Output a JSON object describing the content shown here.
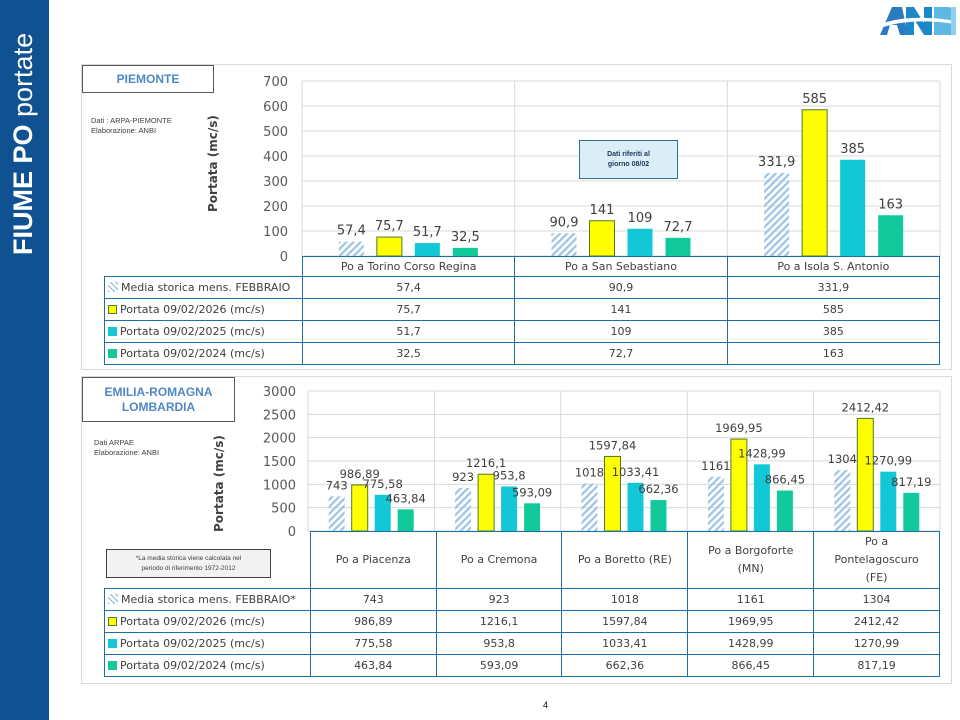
{
  "sidebar": {
    "title_bold": "FIUME PO",
    "title_light": "portate"
  },
  "logo": {
    "text": "ANBI",
    "icon": "anbi-logo-icon"
  },
  "page_number": "4",
  "colors": {
    "sidebar": "#0f5191",
    "media": "#9dc3e6",
    "y2026": "#ffff00",
    "y2025": "#12c8d6",
    "y2024": "#12c99b",
    "table_border": "#1f6fa6",
    "region_title": "#4f88c6"
  },
  "piemonte": {
    "region": "PIEMONTE",
    "source_line1": "Dati : ARPA-PIEMONTE",
    "source_line2": "Elaborazione: ANBI",
    "note_line1": "Dati riferiti al",
    "note_line2": "giorno 08/02"
  },
  "emilia": {
    "region_line1": "EMILIA-ROMAGNA",
    "region_line2": "LOMBARDIA",
    "source_line1": "Dati ARPAE",
    "source_line2": "Elaborazione: ANBI",
    "footnote_line1": "*La media storica viene calcolata nel",
    "footnote_line2": "periodo di riferimento 1972-2012"
  },
  "chart_data": [
    {
      "type": "bar",
      "title": "PIEMONTE",
      "xlabel": "",
      "ylabel": "Portata (mc/s)",
      "ylim": [
        0,
        700
      ],
      "yticks": [
        "0",
        "100",
        "200",
        "300",
        "400",
        "500",
        "600",
        "700"
      ],
      "ytick_values": [
        0,
        100,
        200,
        300,
        400,
        500,
        600,
        700
      ],
      "grid": true,
      "legend": "data-table-below",
      "categories": [
        "Po a Torino Corso Regina",
        "Po a San Sebastiano",
        "Po a Isola S. Antonio"
      ],
      "series": [
        {
          "name": "Media storica mens. FEBBRAIO",
          "style": "hatch",
          "values": [
            57.4,
            90.9,
            331.9
          ],
          "labels": [
            "57,4",
            "90,9",
            "331,9"
          ]
        },
        {
          "name": "Portata 09/02/2026 (mc/s)",
          "style": "yellow",
          "values": [
            75.7,
            141,
            585
          ],
          "labels": [
            "75,7",
            "141",
            "585"
          ]
        },
        {
          "name": "Portata 09/02/2025 (mc/s)",
          "style": "cyan",
          "values": [
            51.7,
            109,
            385
          ],
          "labels": [
            "51,7",
            "109",
            "385"
          ]
        },
        {
          "name": "Portata 09/02/2024 (mc/s)",
          "style": "green",
          "values": [
            32.5,
            72.7,
            163
          ],
          "labels": [
            "32,5",
            "72,7",
            "163"
          ]
        }
      ]
    },
    {
      "type": "bar",
      "title": "EMILIA-ROMAGNA LOMBARDIA",
      "xlabel": "",
      "ylabel": "Portata (mc/s)",
      "ylim": [
        0,
        3000
      ],
      "yticks": [
        "0",
        "500",
        "1000",
        "1500",
        "2000",
        "2500",
        "3000"
      ],
      "ytick_values": [
        0,
        500,
        1000,
        1500,
        2000,
        2500,
        3000
      ],
      "grid": true,
      "legend": "data-table-below",
      "categories": [
        "Po a Piacenza",
        "Po a Cremona",
        "Po a Boretto (RE)",
        "Po a Borgoforte (MN)",
        "Po a Pontelagoscuro (FE)"
      ],
      "category_lines": [
        [
          "Po a Piacenza"
        ],
        [
          "Po a Cremona"
        ],
        [
          "Po a Boretto (RE)"
        ],
        [
          "Po a Borgoforte",
          "(MN)"
        ],
        [
          "Po a",
          "Pontelagoscuro",
          "(FE)"
        ]
      ],
      "series": [
        {
          "name": "Media storica mens. FEBBRAIO*",
          "style": "hatch",
          "values": [
            743,
            923,
            1018,
            1161,
            1304
          ],
          "labels": [
            "743",
            "923",
            "1018",
            "1161",
            "1304"
          ]
        },
        {
          "name": "Portata 09/02/2026 (mc/s)",
          "style": "yellow",
          "values": [
            986.89,
            1216.1,
            1597.84,
            1969.95,
            2412.42
          ],
          "labels": [
            "986,89",
            "1216,1",
            "1597,84",
            "1969,95",
            "2412,42"
          ]
        },
        {
          "name": "Portata 09/02/2025 (mc/s)",
          "style": "cyan",
          "values": [
            775.58,
            953.8,
            1033.41,
            1428.99,
            1270.99
          ],
          "labels": [
            "775,58",
            "953,8",
            "1033,41",
            "1428,99",
            "1270,99"
          ]
        },
        {
          "name": "Portata 09/02/2024 (mc/s)",
          "style": "green",
          "values": [
            463.84,
            593.09,
            662.36,
            866.45,
            817.19
          ],
          "labels": [
            "463,84",
            "593,09",
            "662,36",
            "866,45",
            "817,19"
          ]
        }
      ]
    }
  ]
}
